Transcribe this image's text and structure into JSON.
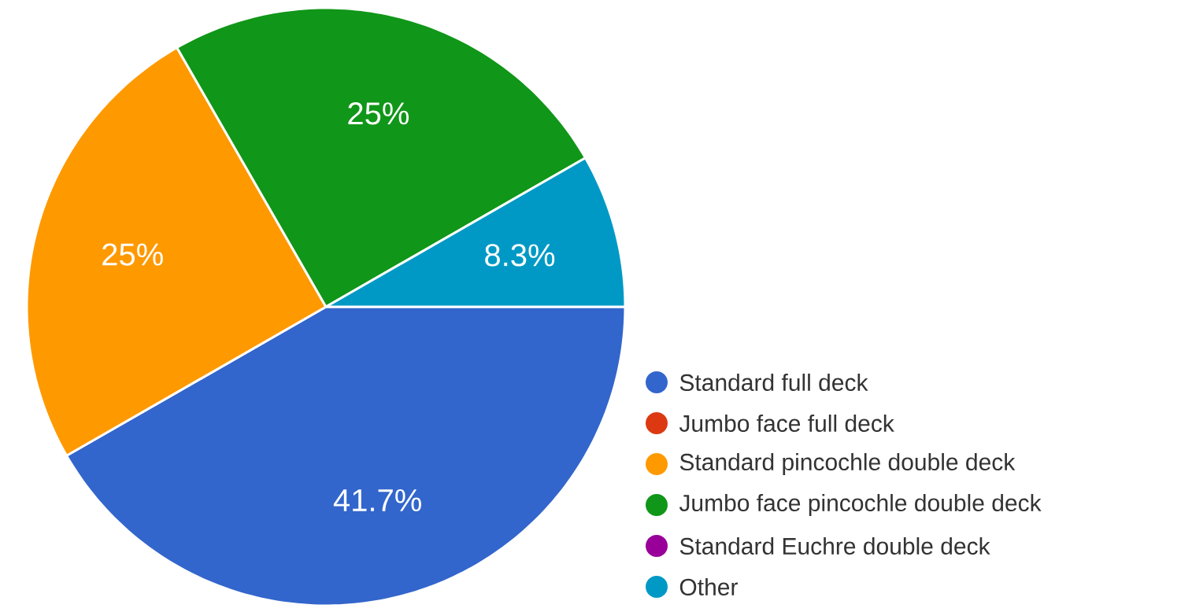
{
  "chart_data": {
    "type": "pie",
    "categories": [
      "Standard full deck",
      "Jumbo face full deck",
      "Standard pincochle double deck",
      "Jumbo face pincochle double deck",
      "Standard Euchre double deck",
      "Other"
    ],
    "values": [
      41.7,
      0,
      25,
      25,
      0,
      8.3
    ],
    "colors": [
      "#3366cc",
      "#dc3912",
      "#ff9900",
      "#109618",
      "#990099",
      "#0099c6"
    ],
    "value_labels": [
      "41.7%",
      null,
      "25%",
      "25%",
      null,
      "8.3%"
    ],
    "legend": "right"
  }
}
